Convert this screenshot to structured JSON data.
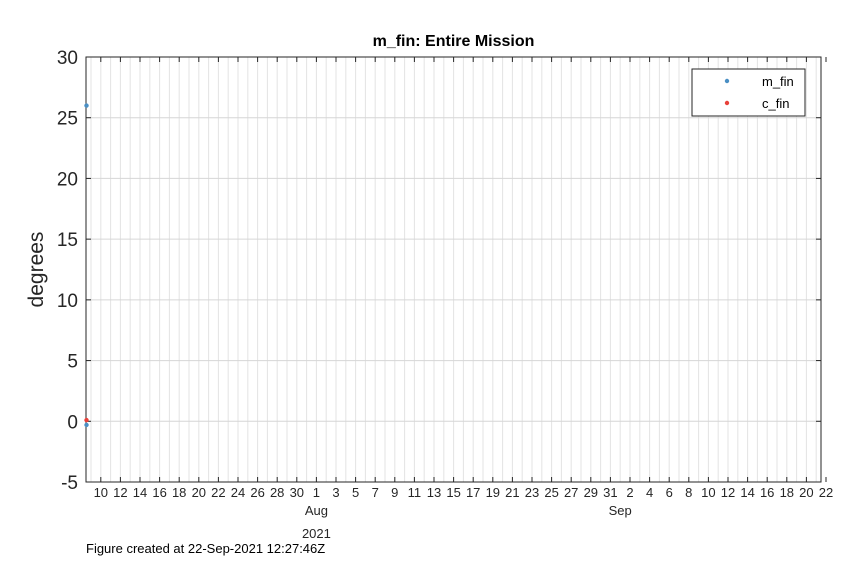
{
  "chart_data": {
    "type": "scatter",
    "title": "m_fin: Entire Mission",
    "ylabel": "degrees",
    "xlabel": "",
    "xlim": [
      "2021-07-09",
      "2021-09-22"
    ],
    "ylim": [
      -5,
      30
    ],
    "y_ticks": [
      -5,
      0,
      5,
      10,
      15,
      20,
      25,
      30
    ],
    "x_tick_labels": [
      "10",
      "12",
      "14",
      "16",
      "18",
      "20",
      "22",
      "24",
      "26",
      "28",
      "30",
      "1",
      "3",
      "5",
      "7",
      "9",
      "11",
      "13",
      "15",
      "17",
      "19",
      "21",
      "23",
      "25",
      "27",
      "29",
      "31",
      "2",
      "4",
      "6",
      "8",
      "10",
      "12",
      "14",
      "16",
      "18",
      "20",
      "22"
    ],
    "x_month_labels": [
      {
        "label": "Aug",
        "date": "2021-08-01"
      },
      {
        "label": "Sep",
        "date": "2021-09-01"
      }
    ],
    "x_year_label": "2021",
    "grid": true,
    "legend": "top-right",
    "series": [
      {
        "name": "m_fin",
        "color": "#4a8fc4",
        "points": [
          {
            "x": "2021-07-09",
            "y": 26
          },
          {
            "x": "2021-07-09",
            "y": -0.3
          }
        ]
      },
      {
        "name": "c_fin",
        "color": "#e8413a",
        "points": [
          {
            "x": "2021-07-09",
            "y": 0.1
          }
        ]
      }
    ]
  },
  "footnote": "Figure created at 22-Sep-2021 12:27:46Z"
}
